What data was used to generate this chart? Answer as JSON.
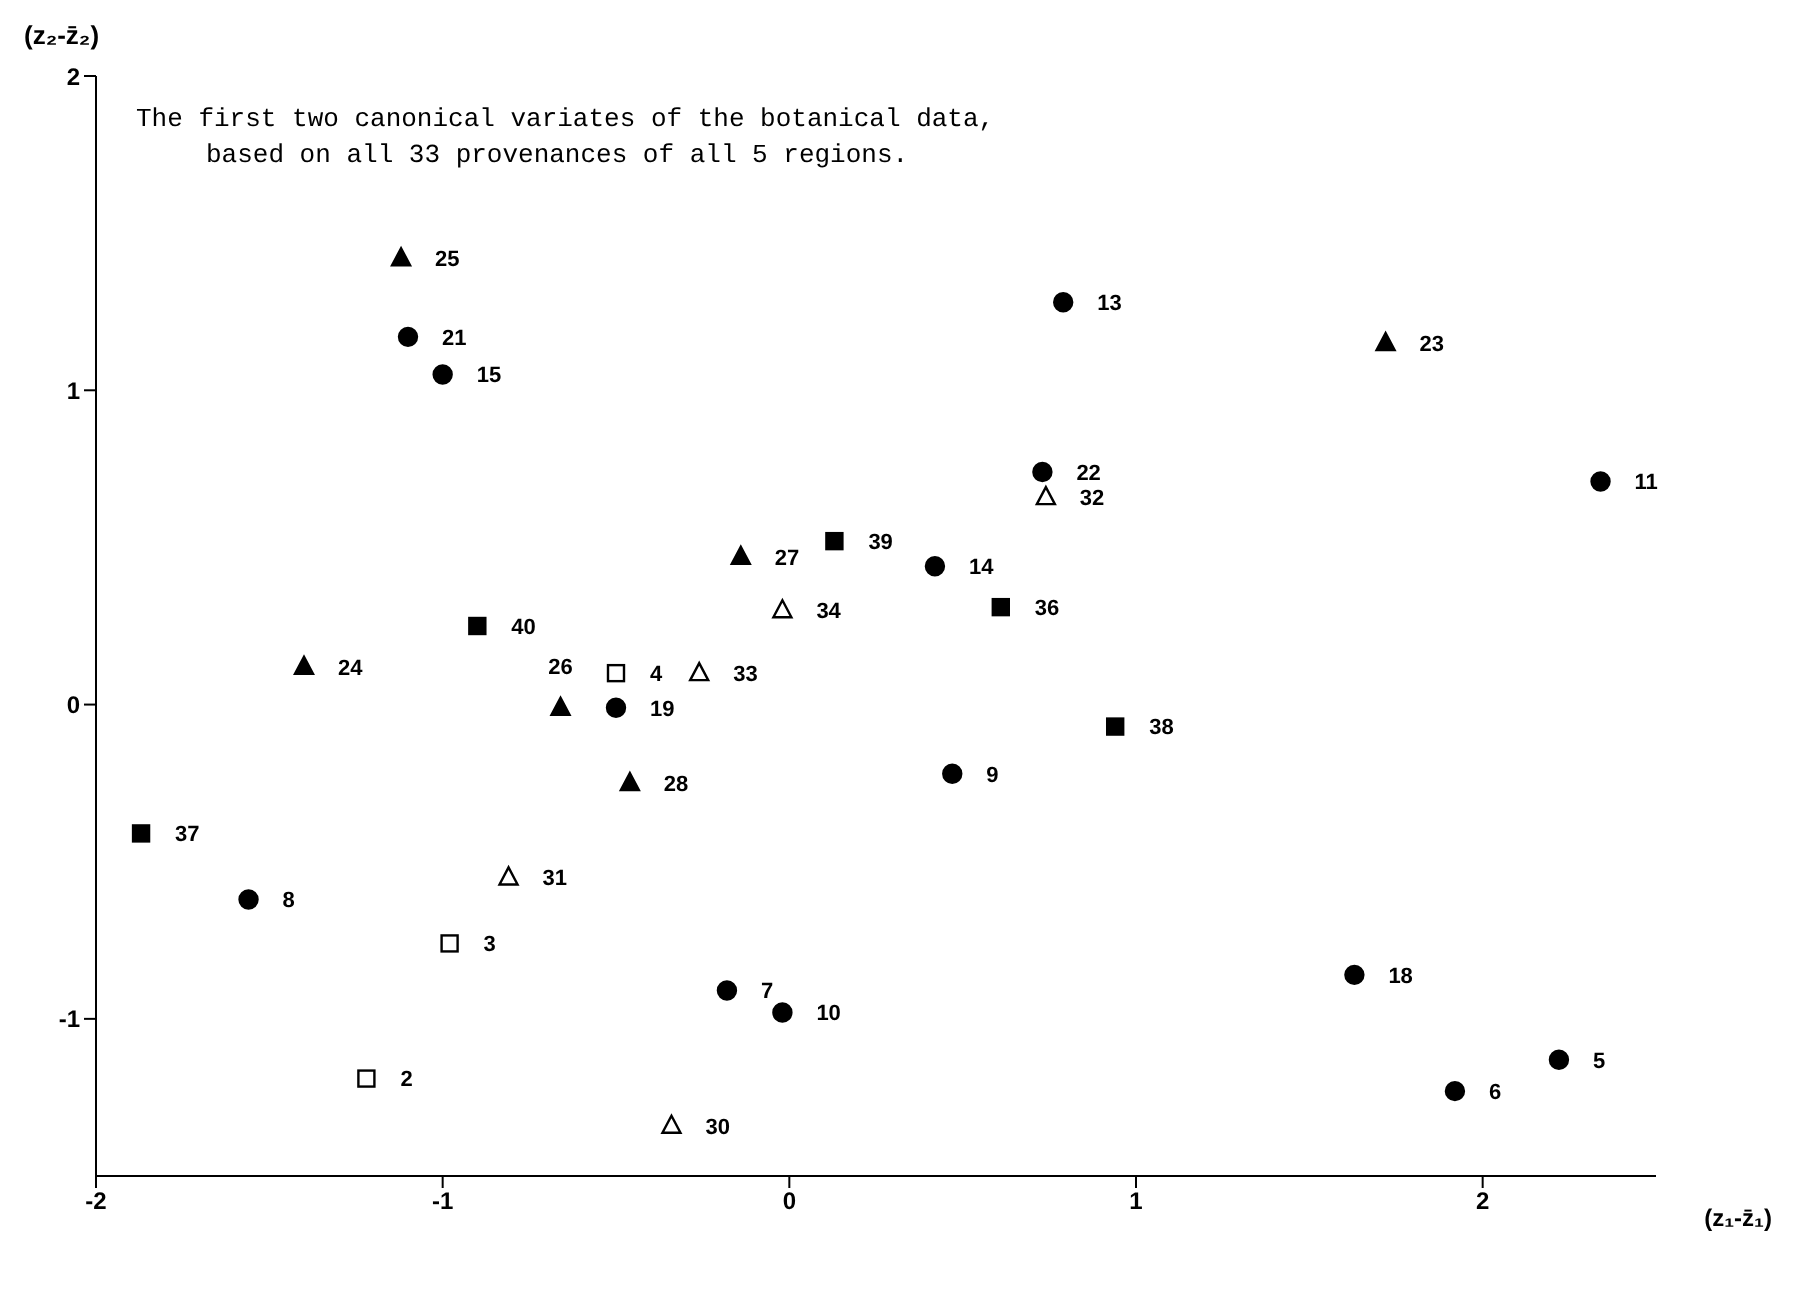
{
  "chart_data": {
    "type": "scatter",
    "title": "The first two canonical variates of the botanical data,\nbased on all 33 provenances of all 5 regions.",
    "xlabel": "(z₁-z̄₁)",
    "ylabel": "(z₂-z̄₂)",
    "xlim": [
      -2,
      2.5
    ],
    "xticks": [
      -2,
      -1,
      0,
      1,
      2
    ],
    "ylim": [
      -1.5,
      2
    ],
    "yticks": [
      -1,
      0,
      1,
      2
    ],
    "grid": false,
    "series": [
      {
        "marker": "circle",
        "color": "#000000",
        "x": [
          -1.1,
          -1.0,
          0.79,
          2.34,
          0.73,
          0.42,
          -0.5,
          0.47,
          -1.56,
          1.63,
          -0.18,
          -0.02,
          1.92,
          2.22
        ],
        "values": [
          1.17,
          1.05,
          1.28,
          0.71,
          0.74,
          0.44,
          -0.01,
          -0.22,
          -0.62,
          -0.86,
          -0.91,
          -0.98,
          -1.23,
          -1.13
        ]
      },
      {
        "marker": "triangle",
        "color": "#000000",
        "x": [
          -1.12,
          1.72,
          -0.14,
          -1.4,
          -0.66,
          -0.46
        ],
        "values": [
          1.42,
          1.15,
          0.47,
          0.12,
          -0.01,
          -0.25
        ]
      },
      {
        "marker": "square",
        "color": "#000000",
        "x": [
          0.13,
          0.61,
          -0.9,
          0.94,
          -1.87
        ],
        "values": [
          0.52,
          0.31,
          0.25,
          -0.07,
          -0.41
        ]
      },
      {
        "marker": "square",
        "color": "#ffffff",
        "x": [
          -0.5,
          -0.98,
          -1.22
        ],
        "values": [
          0.1,
          -0.76,
          -1.19
        ]
      },
      {
        "marker": "triangle",
        "color": "#ffffff",
        "x": [
          0.74,
          -0.02,
          -0.26,
          -0.81,
          -0.34
        ],
        "values": [
          0.66,
          0.3,
          0.1,
          -0.55,
          -1.34
        ]
      }
    ],
    "annotations": [
      {
        "text": "21",
        "x": -1.1,
        "y": 1.17
      },
      {
        "text": "15",
        "x": -1.0,
        "y": 1.05
      },
      {
        "text": "13",
        "x": 0.79,
        "y": 1.28
      },
      {
        "text": "11",
        "x": 2.34,
        "y": 0.71
      },
      {
        "text": "22",
        "x": 0.73,
        "y": 0.74
      },
      {
        "text": "14",
        "x": 0.42,
        "y": 0.44
      },
      {
        "text": "19",
        "x": -0.5,
        "y": -0.01
      },
      {
        "text": "9",
        "x": 0.47,
        "y": -0.22
      },
      {
        "text": "8",
        "x": -1.56,
        "y": -0.62
      },
      {
        "text": "18",
        "x": 1.63,
        "y": -0.86
      },
      {
        "text": "7",
        "x": -0.18,
        "y": -0.91
      },
      {
        "text": "10",
        "x": -0.02,
        "y": -0.98
      },
      {
        "text": "6",
        "x": 1.92,
        "y": -1.23
      },
      {
        "text": "5",
        "x": 2.22,
        "y": -1.13
      },
      {
        "text": "25",
        "x": -1.12,
        "y": 1.42
      },
      {
        "text": "23",
        "x": 1.72,
        "y": 1.15
      },
      {
        "text": "27",
        "x": -0.14,
        "y": 0.47
      },
      {
        "text": "24",
        "x": -1.4,
        "y": 0.12
      },
      {
        "text": "26",
        "x": -0.66,
        "y": -0.01
      },
      {
        "text": "28",
        "x": -0.46,
        "y": -0.25
      },
      {
        "text": "39",
        "x": 0.13,
        "y": 0.52
      },
      {
        "text": "36",
        "x": 0.61,
        "y": 0.31
      },
      {
        "text": "40",
        "x": -0.9,
        "y": 0.25
      },
      {
        "text": "38",
        "x": 0.94,
        "y": -0.07
      },
      {
        "text": "37",
        "x": -1.87,
        "y": -0.41
      },
      {
        "text": "4",
        "x": -0.5,
        "y": 0.1
      },
      {
        "text": "3",
        "x": -0.98,
        "y": -0.76
      },
      {
        "text": "2",
        "x": -1.22,
        "y": -1.19
      },
      {
        "text": "32",
        "x": 0.74,
        "y": 0.66
      },
      {
        "text": "34",
        "x": -0.02,
        "y": 0.3
      },
      {
        "text": "33",
        "x": -0.26,
        "y": 0.1
      },
      {
        "text": "31",
        "x": -0.81,
        "y": -0.55
      },
      {
        "text": "30",
        "x": -0.34,
        "y": -1.34
      }
    ]
  }
}
